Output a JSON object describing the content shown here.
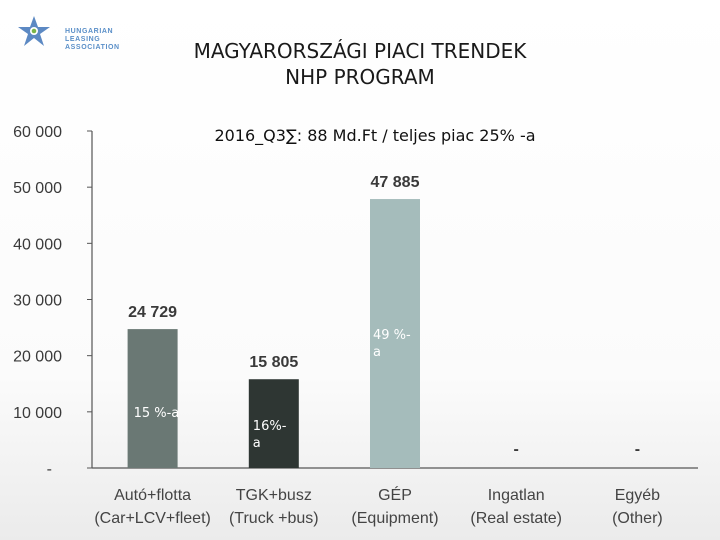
{
  "logo": {
    "lines": [
      "HUNGARIAN",
      "LEASING",
      "ASSOCIATION"
    ],
    "icon": "star-logo-icon",
    "colors": {
      "blue": "#3f74b8",
      "green": "#7ab648"
    }
  },
  "header": {
    "title_line1": "MAGYARORSZÁGI PIACI TRENDEK",
    "title_line2": "NHP PROGRAM"
  },
  "chart_data": {
    "type": "bar",
    "title": "2016_Q3∑: 88 Md.Ft / teljes piac 25% -a",
    "categories": [
      [
        "Autó+flotta",
        "(Car+LCV+fleet)"
      ],
      [
        "TGK+busz",
        "(Truck +bus)"
      ],
      [
        "GÉP",
        "(Equipment)"
      ],
      [
        "Ingatlan",
        "(Real estate)"
      ],
      [
        "Egyéb",
        "(Other)"
      ]
    ],
    "values": [
      24729,
      15805,
      47885,
      0,
      0
    ],
    "value_labels": [
      "24 729",
      "15 805",
      "47 885",
      "-",
      "-"
    ],
    "share_labels": [
      "15 %-a",
      "16%-\na",
      "49 %-\na",
      "",
      ""
    ],
    "ylim": [
      0,
      60000
    ],
    "yticks": [
      0,
      10000,
      20000,
      30000,
      40000,
      50000,
      60000
    ],
    "ytick_labels": [
      "-",
      "10 000",
      "20 000",
      "30 000",
      "40 000",
      "50 000",
      "60 000"
    ],
    "bar_colors": [
      "#6a7874",
      "#2e3633",
      "#a5bcbb",
      "#a5bcbb",
      "#a5bcbb"
    ],
    "share_label_colors": [
      "#ffffff",
      "#ffffff",
      "#ffffff",
      "#ffffff",
      "#ffffff"
    ],
    "grid": false,
    "legend": "none"
  }
}
